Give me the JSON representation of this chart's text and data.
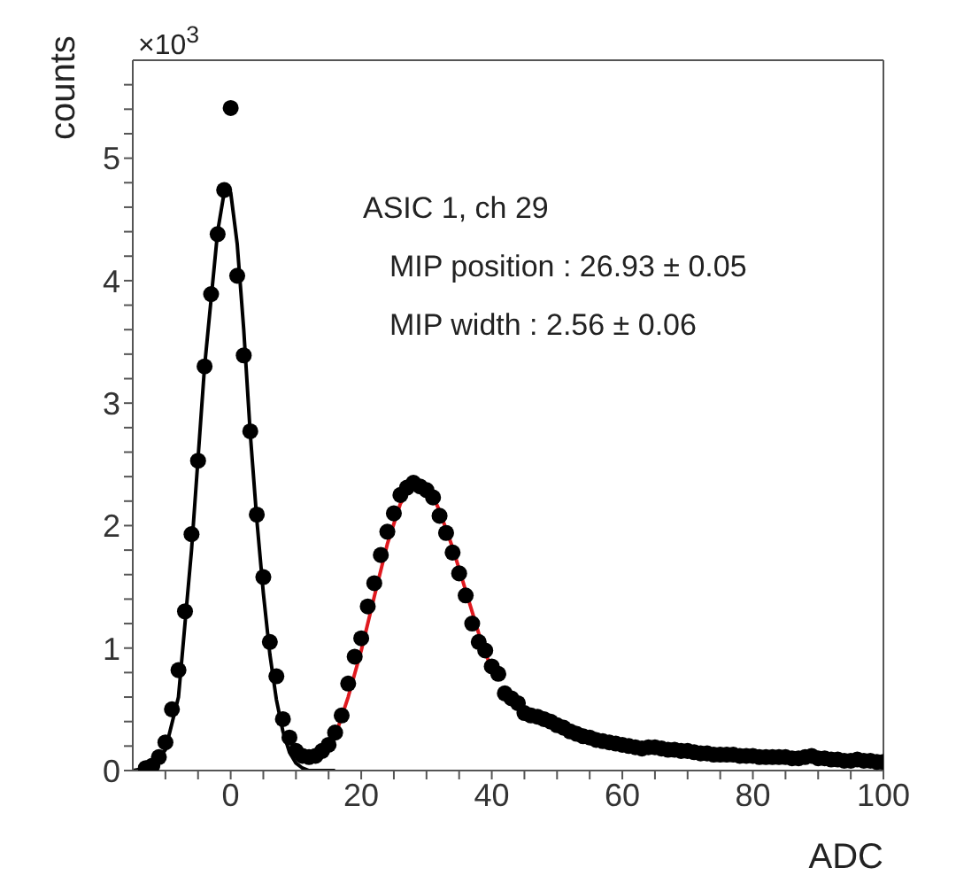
{
  "chart_data": {
    "type": "scatter",
    "xlabel": "ADC",
    "ylabel": "counts",
    "annotations": [
      "×10$^{3}$",
      "ASIC 1, ch 29",
      "MIP position : 26.93 ± 0.05",
      "MIP width : 2.56 ± 0.06"
    ],
    "xlim": [
      -15,
      100
    ],
    "ylim": [
      0,
      5.8
    ],
    "xticks": [
      {
        "value": -10,
        "label": null
      },
      {
        "value": -5,
        "label": null
      },
      0,
      {
        "value": 5,
        "label": null
      },
      {
        "value": 10,
        "label": null
      },
      {
        "value": 15,
        "label": null
      },
      20,
      {
        "value": 25,
        "label": null
      },
      {
        "value": 30,
        "label": null
      },
      {
        "value": 35,
        "label": null
      },
      40,
      {
        "value": 45,
        "label": null
      },
      {
        "value": 50,
        "label": null
      },
      {
        "value": 55,
        "label": null
      },
      60,
      {
        "value": 65,
        "label": null
      },
      {
        "value": 70,
        "label": null
      },
      {
        "value": 75,
        "label": null
      },
      80,
      {
        "value": 85,
        "label": null
      },
      {
        "value": 90,
        "label": null
      },
      {
        "value": 95,
        "label": null
      },
      100
    ],
    "yticks": [
      0,
      {
        "value": 0.2,
        "label": null
      },
      {
        "value": 0.4,
        "label": null
      },
      {
        "value": 0.6,
        "label": null
      },
      {
        "value": 0.8,
        "label": null
      },
      1,
      {
        "value": 1.2,
        "label": null
      },
      {
        "value": 1.4,
        "label": null
      },
      {
        "value": 1.6,
        "label": null
      },
      {
        "value": 1.8,
        "label": null
      },
      2,
      {
        "value": 2.2,
        "label": null
      },
      {
        "value": 2.4,
        "label": null
      },
      {
        "value": 2.6,
        "label": null
      },
      {
        "value": 2.8,
        "label": null
      },
      3,
      {
        "value": 3.2,
        "label": null
      },
      {
        "value": 3.4,
        "label": null
      },
      {
        "value": 3.6,
        "label": null
      },
      {
        "value": 3.8,
        "label": null
      },
      4,
      {
        "value": 4.2,
        "label": null
      },
      {
        "value": 4.4,
        "label": null
      },
      {
        "value": 4.6,
        "label": null
      },
      {
        "value": 4.8,
        "label": null
      },
      5,
      {
        "value": 5.2,
        "label": null
      },
      {
        "value": 5.4,
        "label": null
      },
      {
        "value": 5.6,
        "label": null
      }
    ],
    "series": [
      {
        "marker": "circle",
        "color": "#000000",
        "x": [
          -13,
          -12,
          -11,
          -10,
          -9,
          -8,
          -7,
          -6,
          -5,
          -4,
          -3,
          -2,
          -1,
          0,
          1,
          2,
          3,
          4,
          5,
          6,
          7,
          8,
          9,
          10,
          11,
          12,
          13,
          14,
          15,
          16,
          17,
          18,
          19,
          20,
          21,
          22,
          23,
          24,
          25,
          26,
          27,
          28,
          29,
          30,
          31,
          32,
          33,
          34,
          35,
          36,
          37,
          38,
          39,
          40,
          41,
          42,
          43,
          44,
          45,
          46,
          47,
          48,
          49,
          50,
          51,
          52,
          53,
          54,
          55,
          56,
          57,
          58,
          59,
          60,
          61,
          62,
          63,
          64,
          65,
          66,
          67,
          68,
          69,
          70,
          71,
          72,
          73,
          74,
          75,
          76,
          77,
          78,
          79,
          80,
          81,
          82,
          83,
          84,
          85,
          86,
          87,
          88,
          89,
          90,
          91,
          92,
          93,
          94,
          95,
          96,
          97,
          98,
          99,
          100
        ],
        "values": [
          0.02,
          0.04,
          0.11,
          0.23,
          0.5,
          0.82,
          1.3,
          1.93,
          2.53,
          3.3,
          3.89,
          4.38,
          4.74,
          5.41,
          4.04,
          3.39,
          2.77,
          2.09,
          1.58,
          1.05,
          0.77,
          0.42,
          0.27,
          0.16,
          0.12,
          0.11,
          0.12,
          0.16,
          0.21,
          0.31,
          0.45,
          0.71,
          0.93,
          1.08,
          1.34,
          1.53,
          1.76,
          1.95,
          2.1,
          2.25,
          2.31,
          2.35,
          2.32,
          2.29,
          2.23,
          2.08,
          1.94,
          1.78,
          1.61,
          1.43,
          1.2,
          1.05,
          0.98,
          0.85,
          0.79,
          0.63,
          0.59,
          0.55,
          0.47,
          0.45,
          0.44,
          0.42,
          0.4,
          0.37,
          0.35,
          0.32,
          0.3,
          0.28,
          0.27,
          0.25,
          0.24,
          0.23,
          0.22,
          0.21,
          0.2,
          0.19,
          0.18,
          0.19,
          0.19,
          0.18,
          0.17,
          0.17,
          0.16,
          0.16,
          0.15,
          0.14,
          0.14,
          0.13,
          0.13,
          0.13,
          0.13,
          0.12,
          0.12,
          0.12,
          0.11,
          0.11,
          0.11,
          0.11,
          0.11,
          0.1,
          0.1,
          0.11,
          0.12,
          0.1,
          0.1,
          0.09,
          0.09,
          0.08,
          0.08,
          0.09,
          0.08,
          0.08,
          0.07,
          0.07
        ]
      },
      {
        "type": "line",
        "color": "#000000",
        "x": [
          -15,
          -12,
          -10,
          -8,
          -6,
          -4,
          -2,
          -1,
          0,
          1,
          2,
          3,
          4,
          5,
          6,
          7,
          8,
          9,
          10,
          11,
          12,
          14,
          16
        ],
        "values": [
          0.0,
          0.03,
          0.17,
          0.6,
          1.8,
          3.3,
          4.4,
          4.72,
          4.72,
          4.3,
          3.6,
          2.75,
          2.05,
          1.45,
          0.95,
          0.58,
          0.32,
          0.15,
          0.06,
          0.02,
          0.0,
          0.0,
          0.0
        ]
      },
      {
        "type": "line",
        "color": "#e0191f",
        "x": [
          16,
          18,
          20,
          22,
          24,
          26,
          28,
          29,
          30,
          31,
          32,
          34,
          36,
          38,
          40
        ],
        "values": [
          0.28,
          0.6,
          0.98,
          1.42,
          1.85,
          2.18,
          2.34,
          2.36,
          2.32,
          2.24,
          2.12,
          1.82,
          1.47,
          1.12,
          0.82
        ]
      }
    ]
  }
}
